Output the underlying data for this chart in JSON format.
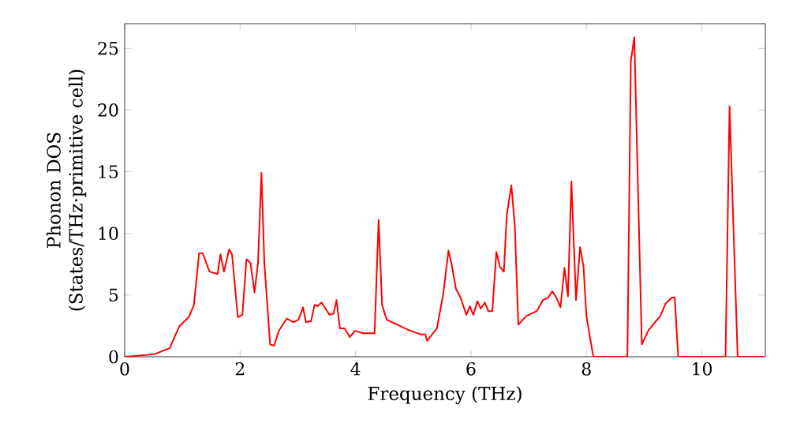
{
  "chart_data": {
    "type": "line",
    "xlabel": "Frequency (THz)",
    "ylabel": "Phonon DOS (States/THz·primitive cell)",
    "xlim": [
      0,
      11.1
    ],
    "ylim": [
      0,
      27
    ],
    "xticks": [
      0,
      2,
      4,
      6,
      8,
      10
    ],
    "yticks": [
      0,
      5,
      10,
      15,
      20,
      25
    ],
    "series": [
      {
        "color": "#ff0000",
        "x": [
          0,
          0.51,
          0.78,
          0.95,
          1.11,
          1.2,
          1.29,
          1.35,
          1.47,
          1.61,
          1.66,
          1.72,
          1.81,
          1.86,
          1.96,
          2.04,
          2.11,
          2.18,
          2.25,
          2.31,
          2.37,
          2.42,
          2.52,
          2.59,
          2.67,
          2.81,
          2.92,
          3.01,
          3.09,
          3.14,
          3.23,
          3.29,
          3.34,
          3.41,
          3.55,
          3.62,
          3.67,
          3.73,
          3.81,
          3.9,
          3.99,
          4.13,
          4.33,
          4.4,
          4.46,
          4.54,
          4.95,
          5.14,
          5.21,
          5.24,
          5.41,
          5.52,
          5.61,
          5.66,
          5.74,
          5.82,
          5.92,
          5.98,
          6.04,
          6.11,
          6.17,
          6.24,
          6.3,
          6.37,
          6.44,
          6.5,
          6.57,
          6.62,
          6.7,
          6.76,
          6.82,
          6.96,
          7.14,
          7.25,
          7.34,
          7.41,
          7.48,
          7.55,
          7.62,
          7.68,
          7.74,
          7.82,
          7.89,
          7.95,
          8.0,
          8.12,
          8.71,
          8.77,
          8.83,
          8.96,
          9.07,
          9.19,
          9.28,
          9.37,
          9.48,
          9.53,
          9.59,
          10.41,
          10.48,
          10.62,
          11.07
        ],
        "values": [
          0,
          0.2,
          0.7,
          2.5,
          3.2,
          4.2,
          8.4,
          8.4,
          6.9,
          6.7,
          8.3,
          6.9,
          8.7,
          8.3,
          3.2,
          3.4,
          7.9,
          7.6,
          5.2,
          7.6,
          14.9,
          7.6,
          1.0,
          0.9,
          2.1,
          3.1,
          2.8,
          3.0,
          4.0,
          2.8,
          2.9,
          4.2,
          4.1,
          4.4,
          3.4,
          3.5,
          4.6,
          2.3,
          2.3,
          1.6,
          2.1,
          1.9,
          1.9,
          11.1,
          4.2,
          3.0,
          2.1,
          1.8,
          1.8,
          1.3,
          2.3,
          5.1,
          8.6,
          7.6,
          5.5,
          4.8,
          3.4,
          4.1,
          3.4,
          4.5,
          3.9,
          4.4,
          3.7,
          3.7,
          8.5,
          7.3,
          6.9,
          11.5,
          13.9,
          10.6,
          2.6,
          3.3,
          3.7,
          4.6,
          4.8,
          5.3,
          4.8,
          4.0,
          7.2,
          4.9,
          14.2,
          4.6,
          8.9,
          7.3,
          3.3,
          0,
          0,
          24.0,
          25.9,
          1.0,
          2.1,
          2.8,
          3.3,
          4.3,
          4.8,
          4.8,
          0,
          0,
          20.3,
          0,
          0
        ]
      }
    ]
  }
}
